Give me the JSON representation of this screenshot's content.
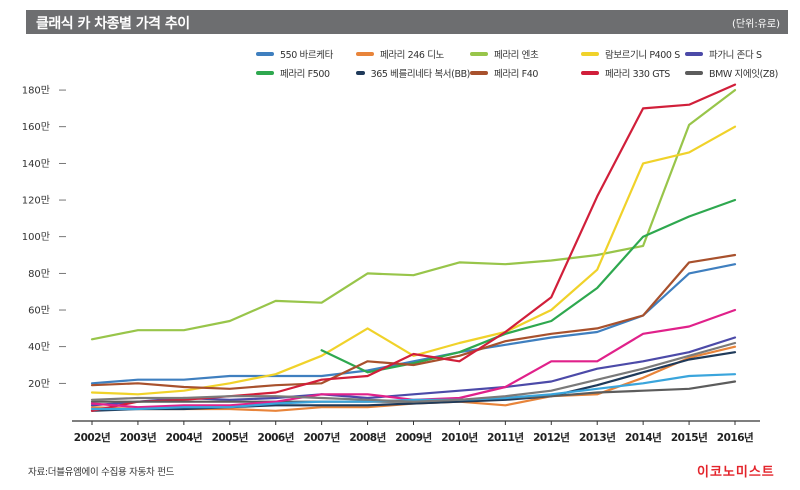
{
  "header": {
    "title": "클래식 카 차종별 가격 추이",
    "unit": "(단위:유로)"
  },
  "footer": {
    "source": "자료:더블유엠에이 수집용 자동차 펀드",
    "brand": "이코노미스트"
  },
  "chart_data": {
    "type": "line",
    "title": "클래식 카 차종별 가격 추이",
    "xlabel": "",
    "ylabel": "",
    "ylim": [
      0,
      190
    ],
    "y_tick_values": [
      20,
      40,
      60,
      80,
      100,
      120,
      140,
      160,
      180
    ],
    "y_tick_labels": [
      "20만",
      "40만",
      "60만",
      "80만",
      "100만",
      "120만",
      "140만",
      "160만",
      "180만"
    ],
    "categories": [
      "2002년",
      "2003년",
      "2004년",
      "2005년",
      "2006년",
      "2007년",
      "2008년",
      "2009년",
      "2010년",
      "2011년",
      "2012년",
      "2013년",
      "2014년",
      "2015년",
      "2016년"
    ],
    "legend_position": "top-right",
    "grid": false,
    "series": [
      {
        "name": "550 바르케타",
        "color": "#3f7fbf",
        "values": [
          20,
          22,
          22,
          24,
          24,
          24,
          27,
          32,
          37,
          41,
          45,
          48,
          57,
          80,
          85
        ]
      },
      {
        "name": "페라리 246 디노",
        "color": "#e8843a",
        "values": [
          7,
          6,
          6,
          6,
          5,
          7,
          7,
          9,
          10,
          8,
          13,
          14,
          23,
          34,
          40
        ]
      },
      {
        "name": "페라리 엔초",
        "color": "#98c54a",
        "values": [
          44,
          49,
          49,
          54,
          65,
          64,
          80,
          79,
          86,
          85,
          87,
          90,
          95,
          161,
          180
        ]
      },
      {
        "name": "람보르기니 P400 S",
        "color": "#f0d22a",
        "values": [
          15,
          14,
          16,
          20,
          25,
          35,
          50,
          35,
          42,
          48,
          60,
          82,
          140,
          146,
          160
        ]
      },
      {
        "name": "파가니 존다 S",
        "color": "#4c4aa8",
        "values": [
          8,
          10,
          12,
          11,
          12,
          14,
          12,
          14,
          16,
          18,
          21,
          28,
          32,
          37,
          45
        ]
      },
      {
        "name": "페라리 F500",
        "color": "#2ea84f",
        "values": [
          null,
          null,
          null,
          null,
          null,
          38,
          26,
          31,
          37,
          47,
          54,
          72,
          100,
          111,
          120
        ]
      },
      {
        "name": "365 베를리네타 복서(BB)",
        "color": "#1f3a5a",
        "values": [
          5,
          6,
          6,
          7,
          8,
          8,
          8,
          9,
          10,
          11,
          13,
          19,
          26,
          33,
          37
        ]
      },
      {
        "name": "페라리 F40",
        "color": "#a8512d",
        "values": [
          19,
          20,
          18,
          17,
          19,
          20,
          32,
          30,
          35,
          43,
          47,
          50,
          57,
          86,
          90
        ]
      },
      {
        "name": "페라리 330 GTS",
        "color": "#d11f3a",
        "values": [
          5,
          10,
          11,
          13,
          15,
          22,
          24,
          36,
          32,
          48,
          67,
          122,
          170,
          172,
          183
        ]
      },
      {
        "name": "BMW 지에잇(Z8)",
        "color": "#5c5c5c",
        "values": [
          10,
          10,
          10,
          10,
          10,
          10,
          10,
          10,
          11,
          12,
          13,
          15,
          16,
          17,
          21
        ]
      },
      {
        "name": "",
        "color": "#e0218a",
        "values": [
          9,
          7,
          8,
          8,
          10,
          14,
          14,
          11,
          12,
          18,
          32,
          32,
          47,
          51,
          60
        ]
      },
      {
        "name": "",
        "color": "#3aa5dc",
        "values": [
          6,
          6,
          7,
          7,
          9,
          10,
          10,
          11,
          11,
          12,
          14,
          17,
          20,
          24,
          25
        ]
      },
      {
        "name": "",
        "color": "#7a7a7a",
        "values": [
          11,
          12,
          12,
          13,
          13,
          12,
          11,
          10,
          11,
          13,
          16,
          22,
          28,
          35,
          42
        ]
      }
    ]
  }
}
